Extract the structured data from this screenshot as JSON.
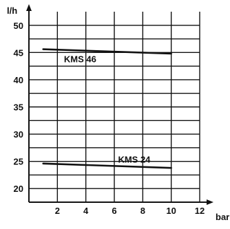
{
  "chart_data": {
    "type": "line",
    "xlabel": "bar",
    "ylabel": "l/h",
    "xlim": [
      0,
      12
    ],
    "ylim": [
      20,
      50
    ],
    "x_ticks": [
      "2",
      "4",
      "6",
      "8",
      "10",
      "12"
    ],
    "y_ticks": [
      "20",
      "25",
      "30",
      "35",
      "40",
      "45",
      "50"
    ],
    "grid": true,
    "series": [
      {
        "name": "KMS 46",
        "x": [
          1,
          10
        ],
        "y": [
          45.6,
          44.8
        ]
      },
      {
        "name": "KMS 24",
        "x": [
          1,
          10
        ],
        "y": [
          24.6,
          23.8
        ]
      }
    ]
  }
}
